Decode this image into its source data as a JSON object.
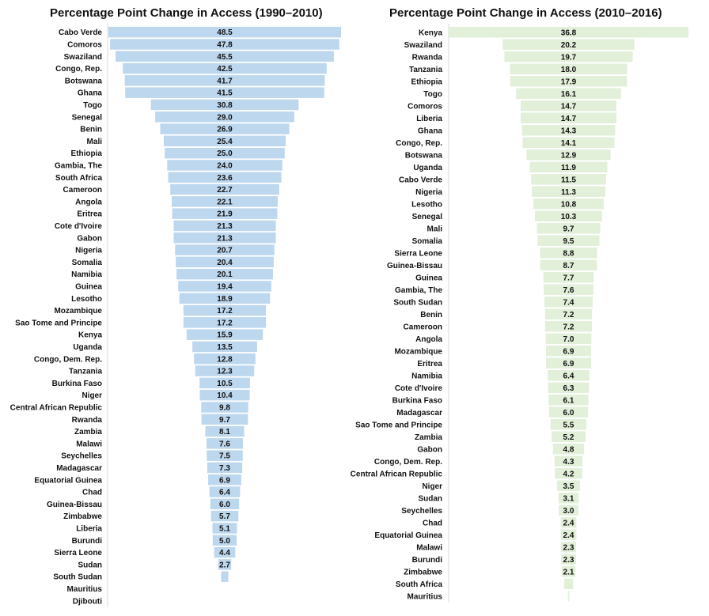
{
  "chart_data": [
    {
      "type": "bar",
      "orientation": "horizontal-centered",
      "title": "Percentage Point Change in Access (1990–2010)",
      "color": "#bdd7ee",
      "xlim": [
        0,
        48.5
      ],
      "categories": [
        "Cabo Verde",
        "Comoros",
        "Swaziland",
        "Congo, Rep.",
        "Botswana",
        "Ghana",
        "Togo",
        "Senegal",
        "Benin",
        "Mali",
        "Ethiopia",
        "Gambia, The",
        "South Africa",
        "Cameroon",
        "Angola",
        "Eritrea",
        "Cote d'Ivoire",
        "Gabon",
        "Nigeria",
        "Somalia",
        "Namibia",
        "Guinea",
        "Lesotho",
        "Mozambique",
        "Sao Tome and Principe",
        "Kenya",
        "Uganda",
        "Congo, Dem. Rep.",
        "Tanzania",
        "Burkina Faso",
        "Niger",
        "Central African Republic",
        "Rwanda",
        "Zambia",
        "Malawi",
        "Seychelles",
        "Madagascar",
        "Equatorial Guinea",
        "Chad",
        "Guinea-Bissau",
        "Zimbabwe",
        "Liberia",
        "Burundi",
        "Sierra Leone",
        "Sudan",
        "South Sudan",
        "Mauritius",
        "Djibouti"
      ],
      "values": [
        48.5,
        47.8,
        45.5,
        42.5,
        41.7,
        41.5,
        30.8,
        29.0,
        26.9,
        25.4,
        25.0,
        24.0,
        23.6,
        22.7,
        22.1,
        21.9,
        21.3,
        21.3,
        20.7,
        20.4,
        20.1,
        19.4,
        18.9,
        17.2,
        17.2,
        15.9,
        13.5,
        12.8,
        12.3,
        10.5,
        10.4,
        9.8,
        9.7,
        8.1,
        7.6,
        7.5,
        7.3,
        6.9,
        6.4,
        6.0,
        5.7,
        5.1,
        5.0,
        4.4,
        2.7,
        1.5,
        null,
        null
      ],
      "labels": [
        "48.5",
        "47.8",
        "45.5",
        "42.5",
        "41.7",
        "41.5",
        "30.8",
        "29.0",
        "26.9",
        "25.4",
        "25.0",
        "24.0",
        "23.6",
        "22.7",
        "22.1",
        "21.9",
        "21.3",
        "21.3",
        "20.7",
        "20.4",
        "20.1",
        "19.4",
        "18.9",
        "17.2",
        "17.2",
        "15.9",
        "13.5",
        "12.8",
        "12.3",
        "10.5",
        "10.4",
        "9.8",
        "9.7",
        "8.1",
        "7.6",
        "7.5",
        "7.3",
        "6.9",
        "6.4",
        "6.0",
        "5.7",
        "5.1",
        "5.0",
        "4.4",
        "2.7",
        "",
        "",
        ""
      ]
    },
    {
      "type": "bar",
      "orientation": "horizontal-centered",
      "title": "Percentage Point Change in Access (2010–2016)",
      "color": "#e2efd9",
      "xlim": [
        0,
        36.8
      ],
      "categories": [
        "Kenya",
        "Swaziland",
        "Rwanda",
        "Tanzania",
        "Ethiopia",
        "Togo",
        "Comoros",
        "Liberia",
        "Ghana",
        "Congo, Rep.",
        "Botswana",
        "Uganda",
        "Cabo Verde",
        "Nigeria",
        "Lesotho",
        "Senegal",
        "Mali",
        "Somalia",
        "Sierra Leone",
        "Guinea-Bissau",
        "Guinea",
        "Gambia, The",
        "South Sudan",
        "Benin",
        "Cameroon",
        "Angola",
        "Mozambique",
        "Eritrea",
        "Namibia",
        "Cote d'Ivoire",
        "Burkina Faso",
        "Madagascar",
        "Sao Tome and Principe",
        "Zambia",
        "Gabon",
        "Congo, Dem. Rep.",
        "Central African Republic",
        "Niger",
        "Sudan",
        "Seychelles",
        "Chad",
        "Equatorial Guinea",
        "Malawi",
        "Burundi",
        "Zimbabwe",
        "South Africa",
        "Mauritius"
      ],
      "values": [
        36.8,
        20.2,
        19.7,
        18.0,
        17.9,
        16.1,
        14.7,
        14.7,
        14.3,
        14.1,
        12.9,
        11.9,
        11.5,
        11.3,
        10.8,
        10.3,
        9.7,
        9.5,
        8.8,
        8.7,
        7.7,
        7.6,
        7.4,
        7.2,
        7.2,
        7.0,
        6.9,
        6.9,
        6.4,
        6.3,
        6.1,
        6.0,
        5.5,
        5.2,
        4.8,
        4.3,
        4.2,
        3.5,
        3.1,
        3.0,
        2.4,
        2.4,
        2.3,
        2.3,
        2.1,
        1.4,
        0.2
      ],
      "labels": [
        "36.8",
        "20.2",
        "19.7",
        "18.0",
        "17.9",
        "16.1",
        "14.7",
        "14.7",
        "14.3",
        "14.1",
        "12.9",
        "11.9",
        "11.5",
        "11.3",
        "10.8",
        "10.3",
        "9.7",
        "9.5",
        "8.8",
        "8.7",
        "7.7",
        "7.6",
        "7.4",
        "7.2",
        "7.2",
        "7.0",
        "6.9",
        "6.9",
        "6.4",
        "6.3",
        "6.1",
        "6.0",
        "5.5",
        "5.2",
        "4.8",
        "4.3",
        "4.2",
        "3.5",
        "3.1",
        "3.0",
        "2.4",
        "2.4",
        "2.3",
        "2.3",
        "2.1",
        "",
        ""
      ]
    }
  ]
}
